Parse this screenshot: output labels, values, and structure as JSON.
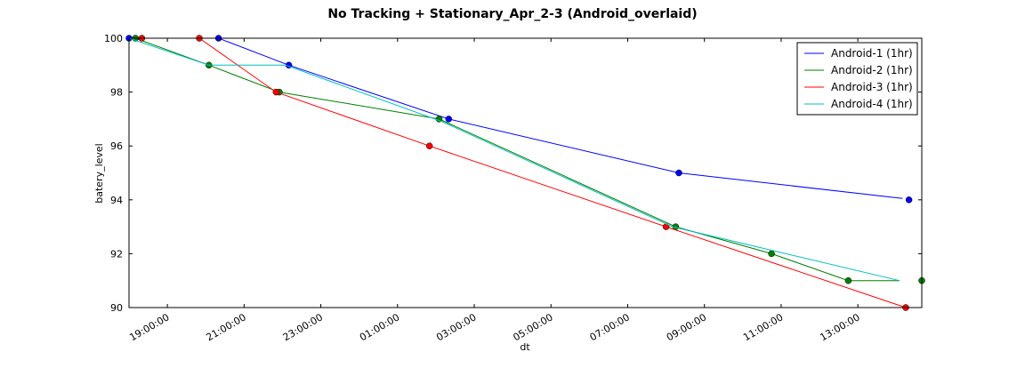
{
  "chart_data": {
    "type": "line",
    "title": "No Tracking + Stationary_Apr_2-3 (Android_overlaid)",
    "xlabel": "dt",
    "ylabel": "batery_level",
    "x_axis_kind": "time",
    "xlim": [
      "2024-04-02T18:00:00",
      "2024-04-03T14:40:00"
    ],
    "ylim": [
      90,
      100
    ],
    "y_ticks": [
      90,
      92,
      94,
      96,
      98,
      100
    ],
    "x_ticks": [
      {
        "t": "2024-04-02T19:00:00",
        "label": "19:00:00"
      },
      {
        "t": "2024-04-02T21:00:00",
        "label": "21:00:00"
      },
      {
        "t": "2024-04-02T23:00:00",
        "label": "23:00:00"
      },
      {
        "t": "2024-04-03T01:00:00",
        "label": "01:00:00"
      },
      {
        "t": "2024-04-03T03:00:00",
        "label": "03:00:00"
      },
      {
        "t": "2024-04-03T05:00:00",
        "label": "05:00:00"
      },
      {
        "t": "2024-04-03T07:00:00",
        "label": "07:00:00"
      },
      {
        "t": "2024-04-03T09:00:00",
        "label": "09:00:00"
      },
      {
        "t": "2024-04-03T11:00:00",
        "label": "11:00:00"
      },
      {
        "t": "2024-04-03T13:00:00",
        "label": "13:00:00"
      }
    ],
    "grid": false,
    "legend_position": "top-right",
    "series": [
      {
        "name": "Android-1 (1hr)",
        "color": "#0000ff",
        "line": [
          [
            "2024-04-02T18:00:00",
            100
          ],
          [
            "2024-04-02T20:20:00",
            100
          ],
          [
            "2024-04-02T22:10:00",
            99
          ],
          [
            "2024-04-03T02:20:00",
            97
          ],
          [
            "2024-04-03T08:20:00",
            95
          ],
          [
            "2024-04-03T14:10:00",
            94.05
          ]
        ],
        "points": [
          [
            "2024-04-02T18:00:00",
            100
          ],
          [
            "2024-04-02T20:20:00",
            100
          ],
          [
            "2024-04-02T22:10:00",
            99
          ],
          [
            "2024-04-03T02:20:00",
            97
          ],
          [
            "2024-04-03T08:20:00",
            95
          ],
          [
            "2024-04-03T14:20:00",
            94
          ]
        ]
      },
      {
        "name": "Android-2 (1hr)",
        "color": "#008000",
        "line": [
          [
            "2024-04-02T18:00:00",
            100
          ],
          [
            "2024-04-02T18:10:00",
            100
          ],
          [
            "2024-04-02T20:05:00",
            99
          ],
          [
            "2024-04-02T21:55:00",
            98
          ],
          [
            "2024-04-03T02:05:00",
            97
          ],
          [
            "2024-04-03T08:15:00",
            93
          ],
          [
            "2024-04-03T10:45:00",
            92
          ],
          [
            "2024-04-03T12:45:00",
            91
          ],
          [
            "2024-04-03T14:05:00",
            91
          ]
        ],
        "points": [
          [
            "2024-04-02T18:10:00",
            100
          ],
          [
            "2024-04-02T20:05:00",
            99
          ],
          [
            "2024-04-02T21:55:00",
            98
          ],
          [
            "2024-04-03T02:05:00",
            97
          ],
          [
            "2024-04-03T08:15:00",
            93
          ],
          [
            "2024-04-03T10:45:00",
            92
          ],
          [
            "2024-04-03T12:45:00",
            91
          ],
          [
            "2024-04-03T14:40:00",
            91
          ]
        ]
      },
      {
        "name": "Android-3 (1hr)",
        "color": "#ff0000",
        "line": [
          [
            "2024-04-02T18:00:00",
            100
          ],
          [
            "2024-04-02T18:20:00",
            100
          ],
          [
            "2024-04-02T19:50:00",
            100
          ],
          [
            "2024-04-02T21:50:00",
            98
          ],
          [
            "2024-04-03T01:50:00",
            96
          ],
          [
            "2024-04-03T08:00:00",
            93
          ],
          [
            "2024-04-03T14:15:00",
            90
          ]
        ],
        "points": [
          [
            "2024-04-02T18:20:00",
            100
          ],
          [
            "2024-04-02T19:50:00",
            100
          ],
          [
            "2024-04-02T21:50:00",
            98
          ],
          [
            "2024-04-03T01:50:00",
            96
          ],
          [
            "2024-04-03T08:00:00",
            93
          ],
          [
            "2024-04-03T14:15:00",
            90
          ]
        ]
      },
      {
        "name": "Android-4 (1hr)",
        "color": "#00bfbf",
        "line": [
          [
            "2024-04-02T18:00:00",
            100
          ],
          [
            "2024-04-02T20:05:00",
            99
          ],
          [
            "2024-04-02T22:05:00",
            99
          ],
          [
            "2024-04-03T02:10:00",
            96.9
          ],
          [
            "2024-04-03T08:10:00",
            93
          ],
          [
            "2024-04-03T14:05:00",
            91
          ]
        ],
        "points": []
      }
    ]
  }
}
